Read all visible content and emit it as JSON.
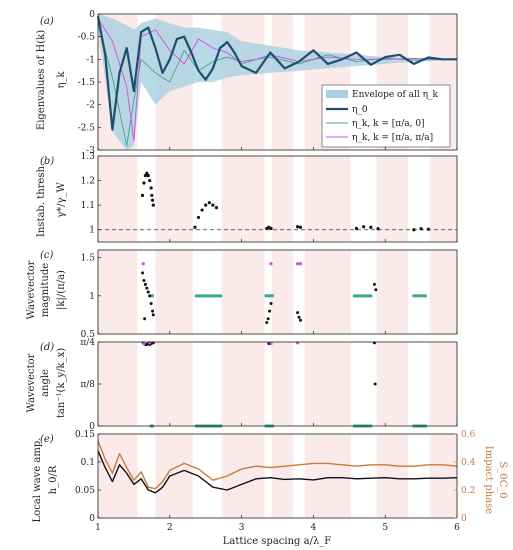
{
  "figure": {
    "xlabel": "Lattice spacing a/λ_F",
    "xlim": [
      1,
      6
    ],
    "xticks": [
      "1",
      "2",
      "3",
      "4",
      "5",
      "6"
    ],
    "colors": {
      "band": "#a9cfe1",
      "eta0": "#1d4f6e",
      "green": "#3aa88e",
      "magenta": "#cf4fd3",
      "black": "#111111",
      "orange": "#c77a3d",
      "pink_shade": "#fbeaea"
    },
    "pink_regions": [
      [
        1.0,
        1.55
      ],
      [
        1.8,
        2.32
      ],
      [
        2.72,
        3.32
      ],
      [
        3.42,
        3.72
      ],
      [
        3.88,
        4.52
      ],
      [
        4.88,
        5.32
      ],
      [
        5.62,
        6.0
      ]
    ]
  },
  "chart_data": [
    {
      "panel": "(a)",
      "type": "line",
      "ylabel_top": "Eigenvalues of H(k)",
      "ylabel_bottom": "η_k",
      "ylim": [
        -3,
        0
      ],
      "yticks": [
        "0",
        "-0.5",
        "-1",
        "-1.5",
        "-2",
        "-2.5",
        "-3"
      ],
      "legend": {
        "placement": "bottom-right",
        "entries": [
          "Envelope of all η_k",
          "η_0",
          "η_k, k = [π/a, 0]",
          "η_k, k = [π/a, π/a]"
        ]
      },
      "series": [
        {
          "name": "η_0",
          "color": "#1d4f6e",
          "x": [
            1.0,
            1.1,
            1.2,
            1.3,
            1.4,
            1.5,
            1.6,
            1.7,
            1.8,
            1.9,
            2.0,
            2.1,
            2.2,
            2.3,
            2.4,
            2.5,
            2.6,
            2.7,
            2.8,
            2.9,
            3.0,
            3.2,
            3.4,
            3.6,
            3.8,
            4.0,
            4.2,
            4.4,
            4.6,
            4.8,
            5.0,
            5.2,
            5.4,
            5.6,
            5.8,
            6.0
          ],
          "y": [
            -0.05,
            -0.9,
            -2.55,
            -1.3,
            -0.75,
            -1.7,
            -0.4,
            -0.3,
            -0.75,
            -1.3,
            -1.0,
            -0.55,
            -0.5,
            -0.85,
            -1.25,
            -1.45,
            -1.2,
            -0.75,
            -0.62,
            -0.85,
            -1.15,
            -1.3,
            -0.85,
            -1.2,
            -1.05,
            -0.8,
            -1.1,
            -1.0,
            -0.85,
            -1.12,
            -0.95,
            -0.9,
            -1.1,
            -0.96,
            -1.0,
            -1.0
          ]
        },
        {
          "name": "η_k, k = [π/a, 0]",
          "color": "#3aa88e",
          "x": [
            1.0,
            1.2,
            1.4,
            1.5,
            1.6,
            1.8,
            2.0,
            2.2,
            2.4,
            2.6,
            2.8,
            3.0,
            3.4,
            3.8,
            4.2,
            4.6,
            5.0,
            5.4,
            5.8,
            6.0
          ],
          "y": [
            -0.2,
            -1.4,
            -2.9,
            -1.9,
            -1.0,
            -1.3,
            -1.5,
            -0.8,
            -1.25,
            -1.05,
            -0.95,
            -1.05,
            -0.95,
            -1.1,
            -0.9,
            -1.05,
            -0.97,
            -1.02,
            -1.0,
            -1.0
          ]
        },
        {
          "name": "η_k, k = [π/a, π/a]",
          "color": "#cf4fd3",
          "x": [
            1.0,
            1.2,
            1.4,
            1.5,
            1.6,
            1.8,
            2.0,
            2.2,
            2.4,
            2.6,
            2.8,
            3.0,
            3.4,
            3.8,
            4.2,
            4.6,
            5.0,
            5.4,
            5.8,
            6.0
          ],
          "y": [
            -0.1,
            -0.6,
            -1.6,
            -2.8,
            -0.5,
            -0.35,
            -0.8,
            -1.1,
            -0.55,
            -0.75,
            -0.85,
            -1.1,
            -0.9,
            -1.05,
            -0.95,
            -1.0,
            -1.0,
            -0.98,
            -1.0,
            -1.0
          ]
        }
      ],
      "envelope": {
        "name": "Envelope of all η_k",
        "x": [
          1.0,
          1.2,
          1.4,
          1.5,
          1.6,
          1.8,
          2.0,
          2.2,
          2.4,
          2.6,
          2.8,
          3.0,
          3.4,
          3.8,
          4.2,
          4.6,
          5.0,
          5.4,
          5.8,
          6.0
        ],
        "upper": [
          0.0,
          -0.1,
          -0.25,
          -0.35,
          -0.2,
          -0.1,
          -0.2,
          -0.3,
          -0.3,
          -0.35,
          -0.4,
          -0.6,
          -0.7,
          -0.8,
          -0.85,
          -0.9,
          -0.95,
          -0.97,
          -0.98,
          -1.0
        ],
        "lower": [
          -0.3,
          -2.6,
          -3.0,
          -2.9,
          -1.5,
          -2.0,
          -1.7,
          -1.6,
          -1.5,
          -1.5,
          -1.4,
          -1.35,
          -1.3,
          -1.25,
          -1.2,
          -1.15,
          -1.1,
          -1.05,
          -1.03,
          -1.0
        ]
      }
    },
    {
      "panel": "(b)",
      "type": "scatter",
      "ylabel_top": "Instab. thresh.",
      "ylabel_bottom": "γ*/γ_W",
      "ylim": [
        0.95,
        1.3
      ],
      "yticks": [
        "1",
        "1.1",
        "1.2",
        "1.3"
      ],
      "threshold_line": 1,
      "points": {
        "x": [
          1.62,
          1.64,
          1.66,
          1.68,
          1.7,
          1.72,
          1.74,
          1.75,
          1.76,
          1.77,
          2.35,
          2.4,
          2.45,
          2.5,
          2.55,
          2.6,
          2.65,
          3.35,
          3.38,
          3.41,
          3.78,
          3.82,
          4.6,
          4.7,
          4.8,
          4.9,
          5.4,
          5.5,
          5.6
        ],
        "y": [
          1.14,
          1.19,
          1.22,
          1.23,
          1.22,
          1.2,
          1.17,
          1.14,
          1.12,
          1.1,
          1.01,
          1.05,
          1.08,
          1.1,
          1.11,
          1.1,
          1.09,
          1.005,
          1.01,
          1.005,
          1.012,
          1.01,
          1.005,
          1.012,
          1.01,
          1.004,
          1.0,
          1.004,
          1.002
        ]
      }
    },
    {
      "panel": "(c)",
      "type": "scatter",
      "ylabel_lines": [
        "Wavevector",
        "magnitude",
        "|k|/(π/a)"
      ],
      "ylim": [
        0.5,
        1.6
      ],
      "yticks": [
        "0.5",
        "1",
        "1.5"
      ],
      "green_segments": [
        [
          1.72,
          1.78,
          1.0
        ],
        [
          2.35,
          2.73,
          1.0
        ],
        [
          3.32,
          3.45,
          1.0
        ],
        [
          4.55,
          4.82,
          1.0
        ],
        [
          5.38,
          5.58,
          1.0
        ]
      ],
      "black_points": {
        "x": [
          1.62,
          1.64,
          1.66,
          1.68,
          1.7,
          1.72,
          1.74,
          1.76,
          1.77,
          1.65,
          3.35,
          3.37,
          3.39,
          3.41,
          3.78,
          3.8,
          3.82,
          4.85,
          4.87
        ],
        "y": [
          1.3,
          1.2,
          1.15,
          1.1,
          1.05,
          1.0,
          0.9,
          0.8,
          0.75,
          0.7,
          0.65,
          0.7,
          0.8,
          0.9,
          0.78,
          0.72,
          0.68,
          1.15,
          1.08
        ]
      },
      "magenta_points": {
        "x": [
          1.63,
          3.41,
          3.78,
          3.82
        ],
        "y": [
          1.42,
          1.42,
          1.42,
          1.42
        ]
      }
    },
    {
      "panel": "(d)",
      "type": "scatter",
      "ylabel_lines": [
        "Wavevector",
        "angle",
        "tan⁻¹(k_y/k_x)"
      ],
      "ylim": [
        0,
        1
      ],
      "yticks": [
        "0",
        "π/8",
        "π/4"
      ],
      "green_segments": [
        [
          1.72,
          1.78,
          0.0
        ],
        [
          2.35,
          2.73,
          0.0
        ],
        [
          3.32,
          3.45,
          0.0
        ],
        [
          4.55,
          4.82,
          0.0
        ],
        [
          5.38,
          5.58,
          0.0
        ]
      ],
      "black_points": {
        "x": [
          1.63,
          1.66,
          1.68,
          1.7,
          1.72,
          1.74,
          1.77,
          3.38,
          4.85,
          4.86
        ],
        "y": [
          0.99,
          0.97,
          0.97,
          0.98,
          0.97,
          0.98,
          0.99,
          0.98,
          0.99,
          0.5
        ]
      },
      "magenta_points": {
        "x": [
          1.64,
          1.72,
          3.41,
          3.78
        ],
        "y": [
          0.98,
          0.99,
          0.98,
          0.99
        ]
      }
    },
    {
      "panel": "(e)",
      "type": "line",
      "ylabel_lines": [
        "Local wave amp.",
        "h_0/R"
      ],
      "ylabel_right_lines": [
        "Impact phase",
        "S_0C_0"
      ],
      "ylim": [
        0,
        0.15
      ],
      "yticks": [
        "0",
        "0.05",
        "0.1",
        "0.15"
      ],
      "ylim_right": [
        0,
        0.6
      ],
      "yticks_right": [
        "0",
        "0.2",
        "0.4",
        "0.6"
      ],
      "series": [
        {
          "name": "h_0/R",
          "color": "#111111",
          "x": [
            1.0,
            1.1,
            1.2,
            1.3,
            1.4,
            1.5,
            1.6,
            1.7,
            1.8,
            1.9,
            2.0,
            2.2,
            2.4,
            2.6,
            2.8,
            3.0,
            3.2,
            3.4,
            3.6,
            3.8,
            4.0,
            4.2,
            4.4,
            4.6,
            4.8,
            5.0,
            5.2,
            5.4,
            5.6,
            5.8,
            6.0
          ],
          "y": [
            0.12,
            0.09,
            0.065,
            0.095,
            0.08,
            0.06,
            0.07,
            0.05,
            0.045,
            0.055,
            0.075,
            0.085,
            0.075,
            0.055,
            0.05,
            0.06,
            0.07,
            0.072,
            0.069,
            0.07,
            0.068,
            0.072,
            0.072,
            0.07,
            0.071,
            0.072,
            0.07,
            0.07,
            0.071,
            0.071,
            0.072
          ]
        },
        {
          "name": "S_0C_0",
          "color": "#c77a3d",
          "x": [
            1.0,
            1.1,
            1.2,
            1.3,
            1.4,
            1.5,
            1.6,
            1.7,
            1.8,
            1.9,
            2.0,
            2.2,
            2.4,
            2.6,
            2.8,
            3.0,
            3.2,
            3.4,
            3.6,
            3.8,
            4.0,
            4.2,
            4.4,
            4.6,
            4.8,
            5.0,
            5.2,
            5.4,
            5.6,
            5.8,
            6.0
          ],
          "y": [
            0.55,
            0.42,
            0.32,
            0.46,
            0.36,
            0.27,
            0.33,
            0.22,
            0.21,
            0.26,
            0.34,
            0.39,
            0.35,
            0.27,
            0.3,
            0.35,
            0.37,
            0.36,
            0.37,
            0.38,
            0.39,
            0.39,
            0.38,
            0.37,
            0.38,
            0.38,
            0.37,
            0.37,
            0.38,
            0.38,
            0.37
          ]
        }
      ]
    }
  ]
}
